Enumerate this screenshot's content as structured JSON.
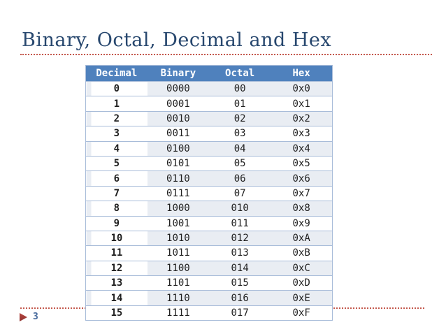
{
  "slide": {
    "title": "Binary, Octal, Decimal and Hex",
    "page_number": "3"
  },
  "table": {
    "headers": [
      "Decimal",
      "Binary",
      "Octal",
      "Hex"
    ],
    "rows": [
      [
        "0",
        "0000",
        "00",
        "0x0"
      ],
      [
        "1",
        "0001",
        "01",
        "0x1"
      ],
      [
        "2",
        "0010",
        "02",
        "0x2"
      ],
      [
        "3",
        "0011",
        "03",
        "0x3"
      ],
      [
        "4",
        "0100",
        "04",
        "0x4"
      ],
      [
        "5",
        "0101",
        "05",
        "0x5"
      ],
      [
        "6",
        "0110",
        "06",
        "0x6"
      ],
      [
        "7",
        "0111",
        "07",
        "0x7"
      ],
      [
        "8",
        "1000",
        "010",
        "0x8"
      ],
      [
        "9",
        "1001",
        "011",
        "0x9"
      ],
      [
        "10",
        "1010",
        "012",
        "0xA"
      ],
      [
        "11",
        "1011",
        "013",
        "0xB"
      ],
      [
        "12",
        "1100",
        "014",
        "0xC"
      ],
      [
        "13",
        "1101",
        "015",
        "0xD"
      ],
      [
        "14",
        "1110",
        "016",
        "0xE"
      ],
      [
        "15",
        "1111",
        "017",
        "0xF"
      ]
    ],
    "column_keys": [
      "decimal",
      "binary",
      "octal",
      "hex"
    ]
  },
  "colors": {
    "header_bg": "#4f81bd",
    "band_fill": "#e9edf3",
    "table_border": "#a8bcd9",
    "title_text": "#27476e",
    "accent_dotted_line": "#c4584c",
    "page_number_text": "#46699c",
    "triangle_fill_top": "#b5443e",
    "triangle_fill_bottom": "#8f3432"
  }
}
